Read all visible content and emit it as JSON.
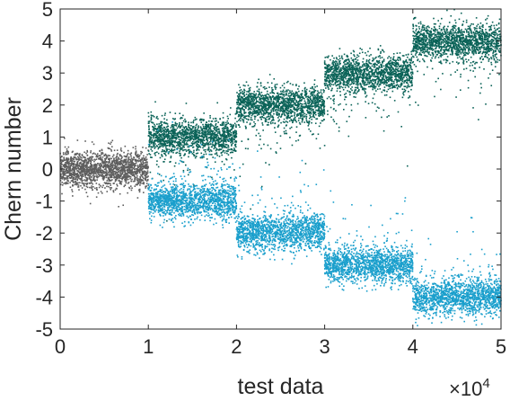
{
  "chart_data": {
    "type": "scatter",
    "title": "",
    "xlabel": "test data",
    "ylabel": "Chern number",
    "xlim": [
      0,
      5
    ],
    "ylim": [
      -5,
      5
    ],
    "x_ticks": [
      "0",
      "1",
      "2",
      "3",
      "4",
      "5"
    ],
    "y_ticks": [
      "5",
      "4",
      "3",
      "2",
      "1",
      "0",
      "-1",
      "-2",
      "-3",
      "-4",
      "-5"
    ],
    "x_multiplier": {
      "base": "×10",
      "exponent": "4"
    },
    "grid": false,
    "legend": "none",
    "series": [
      {
        "color": "#5e5e5e",
        "x_range": [
          0,
          1
        ],
        "center": 0
      },
      {
        "color": "#0b6358",
        "x_range": [
          1,
          2
        ],
        "center": 1
      },
      {
        "color": "#0b6358",
        "x_range": [
          2,
          3
        ],
        "center": 2
      },
      {
        "color": "#0b6358",
        "x_range": [
          3,
          4
        ],
        "center": 3
      },
      {
        "color": "#0b6358",
        "x_range": [
          4,
          5
        ],
        "center": 4
      },
      {
        "color": "#1a9fcc",
        "x_range": [
          1,
          2
        ],
        "center": -1
      },
      {
        "color": "#1a9fcc",
        "x_range": [
          2,
          3
        ],
        "center": -2
      },
      {
        "color": "#1a9fcc",
        "x_range": [
          3,
          4
        ],
        "center": -3
      },
      {
        "color": "#1a9fcc",
        "x_range": [
          4,
          5
        ],
        "center": -4
      }
    ]
  }
}
